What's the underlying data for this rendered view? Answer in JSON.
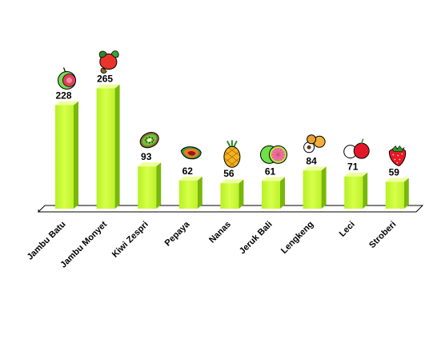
{
  "chart_data": {
    "type": "bar",
    "categories": [
      "Jambu Batu",
      "Jambu Monyet",
      "Kiwi Zespri",
      "Pepaya",
      "Nanas",
      "Jeruk Bali",
      "Lengkeng",
      "Leci",
      "Stroberi"
    ],
    "values": [
      228,
      265,
      93,
      62,
      56,
      61,
      84,
      71,
      59
    ],
    "icons": [
      "guava-icon",
      "cashew-apple-icon",
      "kiwi-icon",
      "papaya-icon",
      "pineapple-icon",
      "pomelo-icon",
      "longan-icon",
      "lychee-icon",
      "strawberry-icon"
    ],
    "title": "",
    "xlabel": "",
    "ylabel": "",
    "ylim": [
      0,
      300
    ],
    "grid": false,
    "legend": "none",
    "bar_colors": {
      "front": "#ccff33",
      "side": "#77b80a",
      "top": "#eeffa0"
    },
    "floor_color": "#ffffff"
  }
}
